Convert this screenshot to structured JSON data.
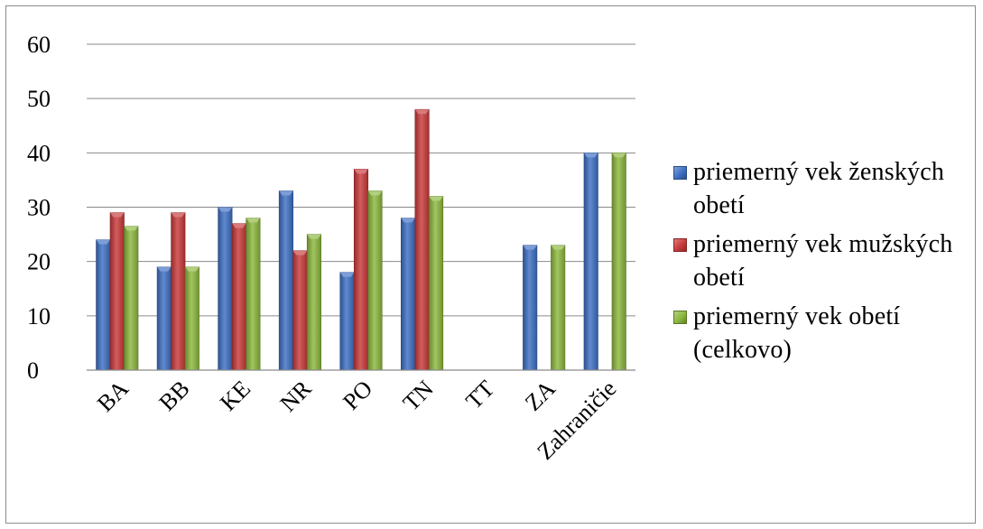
{
  "chart_data": {
    "type": "bar",
    "categories": [
      "BA",
      "BB",
      "KE",
      "NR",
      "PO",
      "TN",
      "TT",
      "ZA",
      "Zahraničie"
    ],
    "series": [
      {
        "name": "priemerný vek ženských obetí",
        "color": "#3d6fc4",
        "values": [
          24,
          19,
          30,
          33,
          18,
          28,
          null,
          23,
          40
        ]
      },
      {
        "name": "priemerný vek mužských obetí",
        "color": "#c9393a",
        "values": [
          29,
          29,
          27,
          22,
          37,
          48,
          null,
          null,
          null
        ]
      },
      {
        "name": "priemerný vek obetí (celkovo)",
        "color": "#8cb83d",
        "values": [
          26.5,
          19,
          28,
          25,
          33,
          32,
          null,
          23,
          40
        ]
      }
    ],
    "y_ticks": [
      "0",
      "10",
      "20",
      "30",
      "40",
      "50",
      "60"
    ],
    "ylim": [
      0,
      60
    ],
    "grid": true,
    "legend_position": "right"
  }
}
